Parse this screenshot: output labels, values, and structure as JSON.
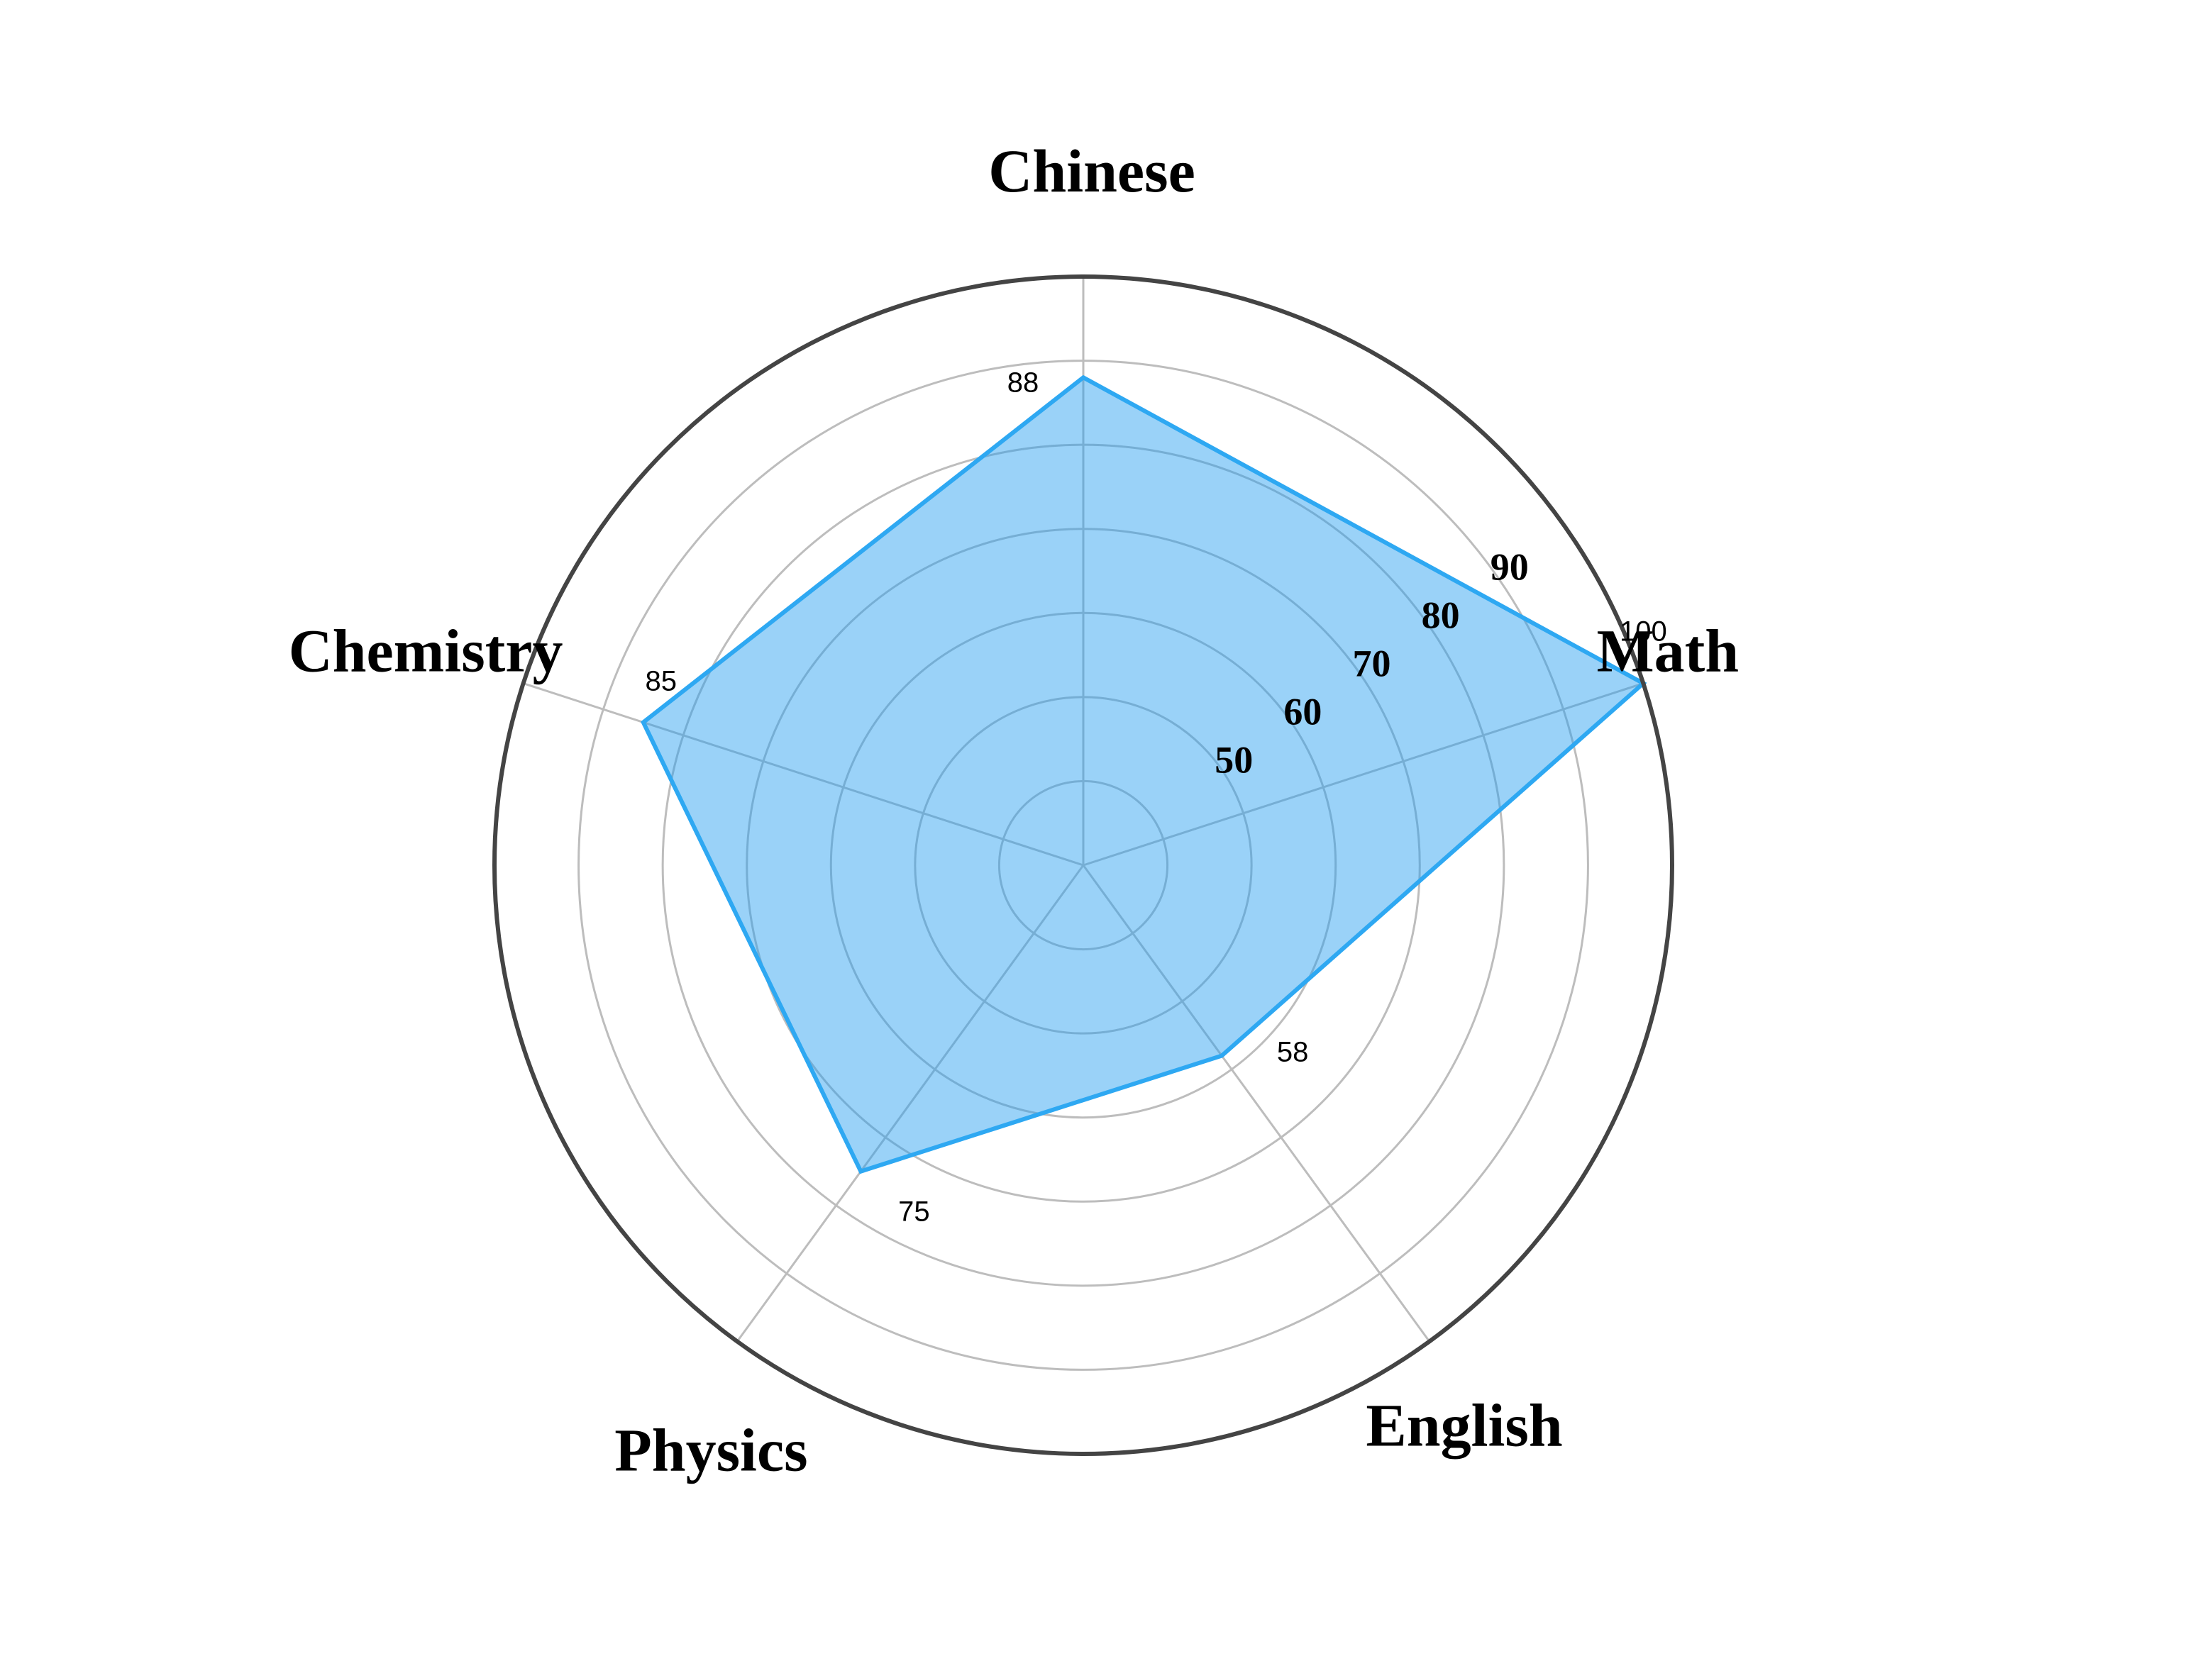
{
  "chart_data": {
    "type": "radar",
    "title": "",
    "axes": [
      "Chinese",
      "Math",
      "English",
      "Physics",
      "Chemistry"
    ],
    "series": [
      {
        "values": [
          88,
          100,
          58,
          75,
          85
        ]
      }
    ],
    "rlim": [
      30,
      100
    ],
    "ring_ticks": [
      50,
      60,
      70,
      80,
      90
    ],
    "outer_label": "100",
    "data_labels": [
      "88",
      "",
      "58",
      "75",
      "85"
    ],
    "grid": true,
    "colors": {
      "fill": "#1E9BF0",
      "stroke": "#2EA8F2",
      "grid": "#BDBDBD",
      "frame": "#444444"
    }
  }
}
